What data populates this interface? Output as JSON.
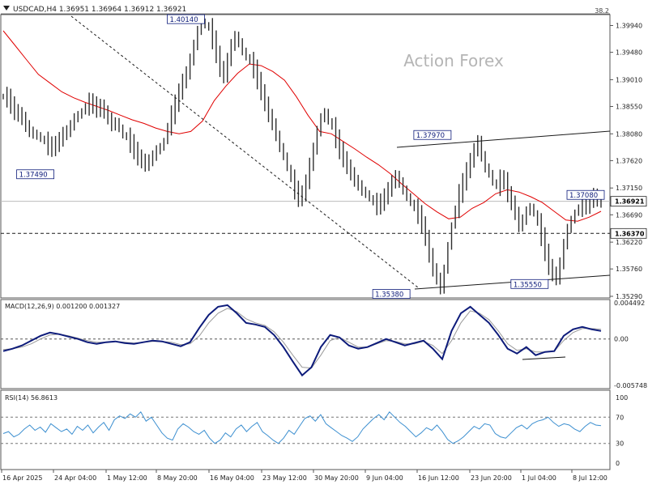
{
  "colors": {
    "background": "#ffffff",
    "price_bar": "#2f2f2f",
    "moving_average": "#e00000",
    "macd_line": "#0d1b7a",
    "signal_line": "#9a9a9a",
    "rsi_line": "#3c8fd0",
    "trendline": "#1a1a1a",
    "level_line": "#1a1a1a",
    "watermark": "#b8b8b8",
    "border": "#4a4a4a"
  },
  "header": {
    "symbol_icon": "triangle-down",
    "text": "USDCAD,H4  1.36951 1.36964 1.36912 1.36921",
    "corner_value": "38.2"
  },
  "watermark": "Action Forex",
  "chart_data": [
    {
      "type": "ohlc",
      "ylim": [
        1.3529,
        1.401
      ],
      "yticks": [
        "1.39940",
        "1.39480",
        "1.39010",
        "1.38550",
        "1.38080",
        "1.37620",
        "1.37150",
        "1.36690",
        "1.36220",
        "1.35760",
        "1.35290"
      ],
      "close_series": [
        1.3872,
        1.387,
        1.3858,
        1.3846,
        1.3842,
        1.3835,
        1.3822,
        1.3812,
        1.3808,
        1.3805,
        1.38,
        1.3795,
        1.3788,
        1.3784,
        1.379,
        1.3798,
        1.3808,
        1.3812,
        1.3822,
        1.3835,
        1.384,
        1.3846,
        1.3856,
        1.3862,
        1.3858,
        1.385,
        1.3855,
        1.3846,
        1.3835,
        1.3822,
        1.3828,
        1.3818,
        1.3806,
        1.3802,
        1.3792,
        1.378,
        1.3768,
        1.3762,
        1.3755,
        1.3762,
        1.377,
        1.378,
        1.3785,
        1.3795,
        1.3822,
        1.384,
        1.386,
        1.388,
        1.3898,
        1.3912,
        1.3935,
        1.396,
        1.3985,
        1.4,
        1.3995,
        1.399,
        1.397,
        1.3945,
        1.392,
        1.3908,
        1.3935,
        1.396,
        1.3975,
        1.3965,
        1.395,
        1.394,
        1.3932,
        1.392,
        1.39,
        1.388,
        1.386,
        1.384,
        1.3825,
        1.3805,
        1.3785,
        1.377,
        1.375,
        1.373,
        1.3712,
        1.3698,
        1.3705,
        1.3725,
        1.3755,
        1.3782,
        1.3812,
        1.3835,
        1.3845,
        1.383,
        1.382,
        1.38,
        1.378,
        1.3765,
        1.3752,
        1.374,
        1.3728,
        1.372,
        1.371,
        1.3705,
        1.3698,
        1.369,
        1.3685,
        1.369,
        1.37,
        1.3712,
        1.3725,
        1.3735,
        1.3725,
        1.3712,
        1.37,
        1.369,
        1.368,
        1.367,
        1.3652,
        1.363,
        1.36,
        1.3575,
        1.356,
        1.3542,
        1.3575,
        1.3615,
        1.365,
        1.368,
        1.3705,
        1.3725,
        1.3745,
        1.3762,
        1.378,
        1.3795,
        1.377,
        1.375,
        1.374,
        1.3725,
        1.3718,
        1.373,
        1.3728,
        1.3705,
        1.369,
        1.3672,
        1.365,
        1.366,
        1.3675,
        1.3682,
        1.3672,
        1.3655,
        1.3632,
        1.3605,
        1.358,
        1.3568,
        1.356,
        1.3585,
        1.3618,
        1.3645,
        1.366,
        1.3672,
        1.3682,
        1.369,
        1.3685,
        1.3694,
        1.3702,
        1.3695,
        1.3692
      ],
      "moving_average": [
        1.3985,
        1.396,
        1.3935,
        1.391,
        1.3895,
        1.388,
        1.387,
        1.3862,
        1.3855,
        1.3848,
        1.384,
        1.3832,
        1.3826,
        1.3818,
        1.3812,
        1.3808,
        1.3812,
        1.383,
        1.3865,
        1.389,
        1.3912,
        1.3928,
        1.3925,
        1.3915,
        1.39,
        1.3872,
        1.384,
        1.3812,
        1.3808,
        1.3795,
        1.3782,
        1.3768,
        1.3755,
        1.374,
        1.3722,
        1.3705,
        1.3688,
        1.3674,
        1.3662,
        1.3665,
        1.368,
        1.369,
        1.3705,
        1.3712,
        1.3708,
        1.37,
        1.369,
        1.3675,
        1.366,
        1.3658,
        1.3665,
        1.3675
      ],
      "series_note": "",
      "labels": [
        {
          "text": "1.40140",
          "x_index": 53,
          "value": 1.4014
        },
        {
          "text": "1.37490",
          "x_index": 14,
          "value": 1.3749
        },
        {
          "text": "1.37970",
          "x_index": 119,
          "value": 1.3797
        },
        {
          "text": "1.35380",
          "x_index": 108,
          "value": 1.3538
        },
        {
          "text": "1.35550",
          "x_index": 145,
          "value": 1.3555
        },
        {
          "text": "1.37080",
          "x_index": 160,
          "value": 1.3708
        }
      ],
      "current_price": "1.36921",
      "horizontal_level": "1.36370"
    },
    {
      "type": "line",
      "name": "MACD(12,26,9) 0.001200 0.001327",
      "yticks": [
        "0.004492",
        "0.00",
        "-0.005748"
      ],
      "ylim": [
        -0.005748,
        0.004492
      ],
      "macd": [
        -0.0015,
        -0.0012,
        -0.0008,
        -0.0002,
        0.0004,
        0.0008,
        0.0006,
        0.0003,
        0.0,
        -0.0004,
        -0.0006,
        -0.0004,
        -0.0003,
        -0.0005,
        -0.0006,
        -0.0004,
        -0.0002,
        -0.0003,
        -0.0006,
        -0.0009,
        -0.0004,
        0.0014,
        0.003,
        0.004,
        0.0042,
        0.0032,
        0.002,
        0.0018,
        0.0015,
        0.0005,
        -0.001,
        -0.0028,
        -0.0045,
        -0.0035,
        -0.001,
        0.0005,
        0.0002,
        -0.0008,
        -0.0012,
        -0.001,
        -0.0005,
        0.0,
        -0.0004,
        -0.0008,
        -0.0005,
        -0.0002,
        -0.0012,
        -0.0025,
        0.001,
        0.0032,
        0.004,
        0.003,
        0.002,
        0.0005,
        -0.0012,
        -0.0018,
        -0.001,
        -0.002,
        -0.0016,
        -0.0015,
        0.0004,
        0.0012,
        0.0015,
        0.0012,
        0.001
      ],
      "signal": [
        -0.0013,
        -0.0012,
        -0.001,
        -0.0006,
        0.0,
        0.0005,
        0.0006,
        0.0004,
        0.0001,
        -0.0002,
        -0.0004,
        -0.0004,
        -0.0003,
        -0.0004,
        -0.0005,
        -0.0004,
        -0.0003,
        -0.0003,
        -0.0004,
        -0.0007,
        -0.0006,
        0.0004,
        0.002,
        0.0032,
        0.0038,
        0.0034,
        0.0025,
        0.002,
        0.0017,
        0.0009,
        -0.0004,
        -0.002,
        -0.0035,
        -0.0036,
        -0.002,
        -0.0002,
        0.0002,
        -0.0004,
        -0.001,
        -0.001,
        -0.0006,
        -0.0002,
        -0.0003,
        -0.0006,
        -0.0006,
        -0.0003,
        -0.0008,
        -0.0018,
        -0.0002,
        0.002,
        0.0035,
        0.0032,
        0.0024,
        0.001,
        -0.0006,
        -0.0014,
        -0.0012,
        -0.0016,
        -0.0016,
        -0.0015,
        -0.0002,
        0.0008,
        0.0013,
        0.0013,
        0.0012
      ]
    },
    {
      "type": "line",
      "name": "RSI(14) 56.8613",
      "yticks": [
        "100",
        "70",
        "30",
        "0"
      ],
      "ylim": [
        0,
        100
      ],
      "levels": [
        70,
        30
      ],
      "values": [
        45,
        48,
        40,
        44,
        52,
        58,
        50,
        55,
        47,
        60,
        54,
        48,
        52,
        44,
        56,
        50,
        58,
        46,
        55,
        62,
        50,
        66,
        72,
        68,
        75,
        70,
        78,
        64,
        70,
        58,
        46,
        38,
        35,
        52,
        60,
        55,
        48,
        44,
        50,
        38,
        30,
        35,
        46,
        40,
        52,
        58,
        48,
        56,
        62,
        48,
        42,
        35,
        30,
        38,
        50,
        44,
        56,
        68,
        72,
        64,
        74,
        60,
        54,
        48,
        42,
        38,
        33,
        40,
        52,
        60,
        68,
        74,
        66,
        78,
        70,
        62,
        56,
        48,
        40,
        46,
        54,
        50,
        58,
        48,
        36,
        30,
        34,
        40,
        48,
        56,
        52,
        60,
        58,
        45,
        40,
        38,
        46,
        54,
        58,
        52,
        60,
        64,
        66,
        70,
        62,
        56,
        60,
        58,
        52,
        48,
        56,
        62,
        58,
        57
      ]
    }
  ],
  "x_axis": {
    "tick_labels": [
      "16 Apr 2025",
      "24 Apr 04:00",
      "1 May 12:00",
      "8 May 20:00",
      "16 May 04:00",
      "23 May 12:00",
      "30 May 20:00",
      "9 Jun 04:00",
      "16 Jun 12:00",
      "23 Jun 20:00",
      "1 Jul 04:00",
      "8 Jul 12:00"
    ]
  }
}
